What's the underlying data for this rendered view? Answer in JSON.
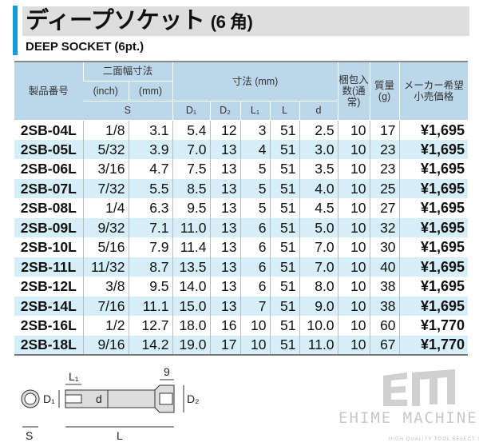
{
  "title": "ディープソケット",
  "title_suffix": "(6 角)",
  "subtitle": "DEEP SOCKET (6pt.)",
  "headers": {
    "product": "製品番号",
    "across_flats": "二面幅寸法",
    "inch": "(inch)",
    "mm": "(mm)",
    "s": "S",
    "dims": "寸法 (mm)",
    "d1": "D₁",
    "d2": "D₂",
    "l1": "L₁",
    "l": "L",
    "d": "d",
    "pack": "梱包入数(通常)",
    "weight": "質量(g)",
    "price": "メーカー希望小売価格"
  },
  "rows": [
    [
      "2SB-04L",
      "1/8",
      "3.1",
      "5.4",
      "12",
      "3",
      "51",
      "2.5",
      "10",
      "17",
      "¥1,695"
    ],
    [
      "2SB-05L",
      "5/32",
      "3.9",
      "7.0",
      "13",
      "4",
      "51",
      "3.0",
      "10",
      "23",
      "¥1,695"
    ],
    [
      "2SB-06L",
      "3/16",
      "4.7",
      "7.5",
      "13",
      "5",
      "51",
      "3.5",
      "10",
      "23",
      "¥1,695"
    ],
    [
      "2SB-07L",
      "7/32",
      "5.5",
      "8.5",
      "13",
      "5",
      "51",
      "4.0",
      "10",
      "25",
      "¥1,695"
    ],
    [
      "2SB-08L",
      "1/4",
      "6.3",
      "9.5",
      "13",
      "5",
      "51",
      "4.5",
      "10",
      "27",
      "¥1,695"
    ],
    [
      "2SB-09L",
      "9/32",
      "7.1",
      "11.0",
      "13",
      "6",
      "51",
      "5.0",
      "10",
      "32",
      "¥1,695"
    ],
    [
      "2SB-10L",
      "5/16",
      "7.9",
      "11.4",
      "13",
      "6",
      "51",
      "7.0",
      "10",
      "30",
      "¥1,695"
    ],
    [
      "2SB-11L",
      "11/32",
      "8.7",
      "13.5",
      "13",
      "6",
      "51",
      "7.0",
      "10",
      "40",
      "¥1,695"
    ],
    [
      "2SB-12L",
      "3/8",
      "9.5",
      "14.0",
      "13",
      "6",
      "51",
      "8.0",
      "10",
      "38",
      "¥1,695"
    ],
    [
      "2SB-14L",
      "7/16",
      "11.1",
      "15.0",
      "13",
      "7",
      "51",
      "9.0",
      "10",
      "38",
      "¥1,695"
    ],
    [
      "2SB-16L",
      "1/2",
      "12.7",
      "18.0",
      "16",
      "10",
      "51",
      "10.0",
      "10",
      "60",
      "¥1,770"
    ],
    [
      "2SB-18L",
      "9/16",
      "14.2",
      "19.0",
      "17",
      "10",
      "51",
      "11.0",
      "10",
      "67",
      "¥1,770"
    ]
  ],
  "diagram": {
    "l1": "L₁",
    "nine": "9",
    "d1": "D₁",
    "d": "d",
    "d2": "D₂",
    "s": "S",
    "l": "L"
  },
  "logo": {
    "mark": "EM",
    "name": "EHIME MACHINE",
    "tagline": "HIGH QUALITY TOOL SELECT SHOP"
  },
  "colors": {
    "accent": "#1b9ad6",
    "header": "#bcd6ea",
    "row_alt": "#d6eef8"
  }
}
